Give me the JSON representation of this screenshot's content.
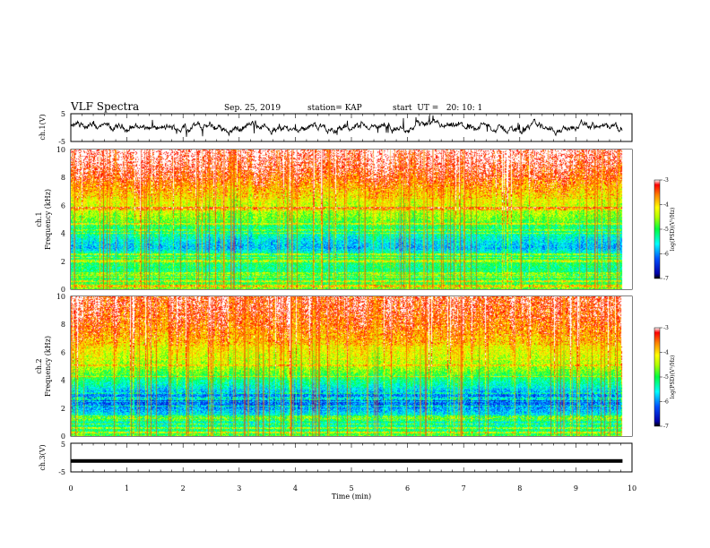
{
  "header": {
    "title": "VLF Spectra",
    "date": "Sep. 25, 2019",
    "station": "station= KAP",
    "start": "start  UT =   20: 10: 1"
  },
  "chart_data": [
    {
      "type": "line",
      "panel": "ch1-waveform",
      "ylabel": "ch.1(V)",
      "ylim": [
        -5,
        5
      ],
      "yticks": [
        "5",
        "-5"
      ],
      "xlim": [
        0,
        10
      ],
      "series": [
        {
          "description_only_visual": true,
          "mean": 0,
          "amplitude_v": 1.5,
          "x_end": 9.83
        }
      ]
    },
    {
      "type": "heatmap",
      "panel": "ch1-spectrogram",
      "ylabel_top": "ch.1",
      "ylabel": "Frequency (kHz)",
      "ylim": [
        0,
        10
      ],
      "yticks": [
        "0",
        "2",
        "4",
        "6",
        "8",
        "10"
      ],
      "xlim": [
        0,
        10
      ],
      "x_end": 9.83,
      "colorbar": {
        "label": "log(PSD)(V²/Hz)",
        "range": [
          -7,
          -3
        ],
        "ticks": [
          "-3",
          "-4",
          "-5",
          "-6",
          "-7"
        ]
      },
      "profile_khz": [
        [
          0,
          -4.6
        ],
        [
          0.5,
          -4.9
        ],
        [
          1.0,
          -5.1
        ],
        [
          1.5,
          -5.2
        ],
        [
          2.0,
          -5.0
        ],
        [
          2.5,
          -5.2
        ],
        [
          3.0,
          -5.8
        ],
        [
          3.5,
          -5.6
        ],
        [
          4.0,
          -5.3
        ],
        [
          4.5,
          -5.1
        ],
        [
          5.0,
          -4.7
        ],
        [
          6.0,
          -4.3
        ],
        [
          7.0,
          -4.0
        ],
        [
          8.0,
          -3.5
        ],
        [
          9.0,
          -3.2
        ],
        [
          10.0,
          -3.0
        ]
      ]
    },
    {
      "type": "heatmap",
      "panel": "ch2-spectrogram",
      "ylabel_top": "ch.2",
      "ylabel": "Frequency (kHz)",
      "ylim": [
        0,
        10
      ],
      "yticks": [
        "0",
        "2",
        "4",
        "6",
        "8",
        "10"
      ],
      "xlim": [
        0,
        10
      ],
      "x_end": 9.83,
      "colorbar": {
        "label": "log(PSD)(V²/Hz)",
        "range": [
          -7,
          -3
        ],
        "ticks": [
          "-3",
          "-4",
          "-5",
          "-6",
          "-7"
        ]
      },
      "profile_khz": [
        [
          0,
          -4.8
        ],
        [
          0.5,
          -5.2
        ],
        [
          1.0,
          -5.4
        ],
        [
          1.5,
          -5.5
        ],
        [
          2.0,
          -5.9
        ],
        [
          2.5,
          -6.2
        ],
        [
          3.0,
          -6.0
        ],
        [
          3.5,
          -5.5
        ],
        [
          4.0,
          -5.2
        ],
        [
          4.5,
          -4.8
        ],
        [
          5.0,
          -4.5
        ],
        [
          6.0,
          -4.2
        ],
        [
          7.0,
          -3.9
        ],
        [
          8.0,
          -3.6
        ],
        [
          9.0,
          -3.4
        ],
        [
          10.0,
          -3.3
        ]
      ]
    },
    {
      "type": "line",
      "panel": "ch3-waveform",
      "ylabel": "ch.3(V)",
      "ylim": [
        -5,
        5
      ],
      "yticks": [
        "5",
        "-5"
      ],
      "xlim": [
        0,
        10
      ],
      "series": [
        {
          "constant_v": -1.2,
          "x_end": 9.83
        }
      ]
    }
  ],
  "xaxis": {
    "label": "Time (min)",
    "ticks": [
      "0",
      "1",
      "2",
      "3",
      "4",
      "5",
      "6",
      "7",
      "8",
      "9",
      "10"
    ]
  },
  "colors": {
    "frame": "#000000",
    "background": "#ffffff"
  }
}
